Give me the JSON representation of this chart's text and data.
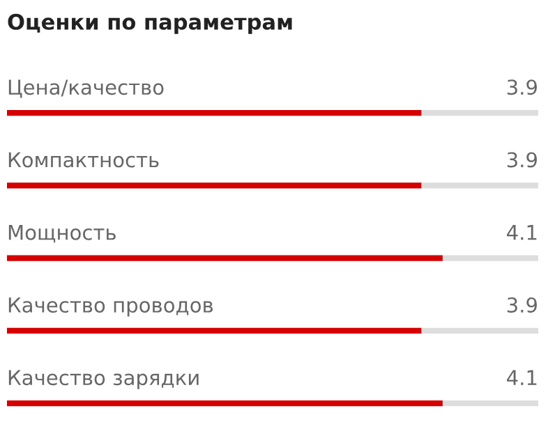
{
  "chart_data": {
    "type": "bar",
    "orientation": "horizontal",
    "title": "Оценки по параметрам",
    "categories": [
      "Цена/качество",
      "Компактность",
      "Мощность",
      "Качество проводов",
      "Качество зарядки"
    ],
    "values": [
      3.9,
      3.9,
      4.1,
      3.9,
      4.1
    ],
    "color": "#d50000",
    "xlim": [
      0,
      5
    ],
    "data_labels": true
  }
}
